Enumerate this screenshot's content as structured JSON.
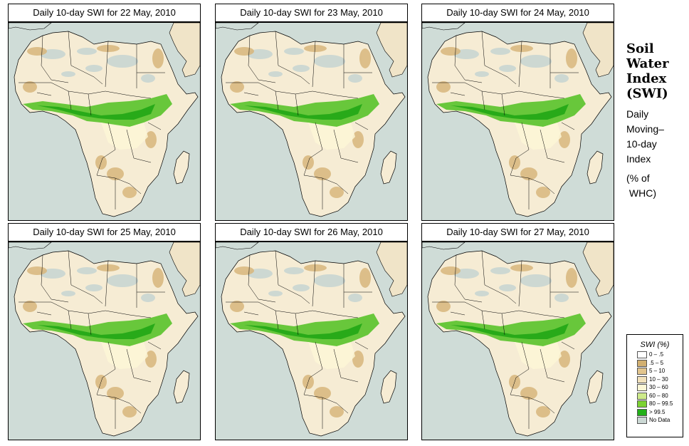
{
  "panels": [
    {
      "title": "Daily 10-day SWI for  22 May, 2010"
    },
    {
      "title": "Daily 10-day SWI for  23 May, 2010"
    },
    {
      "title": "Daily 10-day SWI for  24 May, 2010"
    },
    {
      "title": "Daily 10-day SWI for  25 May, 2010"
    },
    {
      "title": "Daily 10-day SWI for  26 May, 2010"
    },
    {
      "title": "Daily 10-day SWI for  27 May, 2010"
    }
  ],
  "side": {
    "title_lines": [
      "Soil",
      "Water",
      "Index",
      "(SWI)"
    ],
    "subtitle_lines": [
      "Daily",
      "Moving–",
      "10-day",
      "Index"
    ],
    "unit_lines": [
      "(% of",
      " WHC)"
    ]
  },
  "legend": {
    "title": "SWI (%)",
    "items": [
      {
        "label": "0 – .5",
        "color": "#ffffff"
      },
      {
        "label": ".5 – 5",
        "color": "#d2b071"
      },
      {
        "label": "5 – 10",
        "color": "#e2c58e"
      },
      {
        "label": "10 – 30",
        "color": "#f2e2bc"
      },
      {
        "label": "30 – 60",
        "color": "#fdf7d6"
      },
      {
        "label": "60 – 80",
        "color": "#cdea8a"
      },
      {
        "label": "80 – 99.5",
        "color": "#7cd233"
      },
      {
        "label": "> 99.5",
        "color": "#22b018"
      },
      {
        "label": "No Data",
        "color": "#cbd8d4"
      }
    ]
  },
  "colors": {
    "ocean": "#cfdcd7",
    "land": "#f6ecd4",
    "dry": "#d8b77c",
    "wet": "#59c32a",
    "very_wet": "#1da514",
    "no_data": "#c9d6d2"
  }
}
